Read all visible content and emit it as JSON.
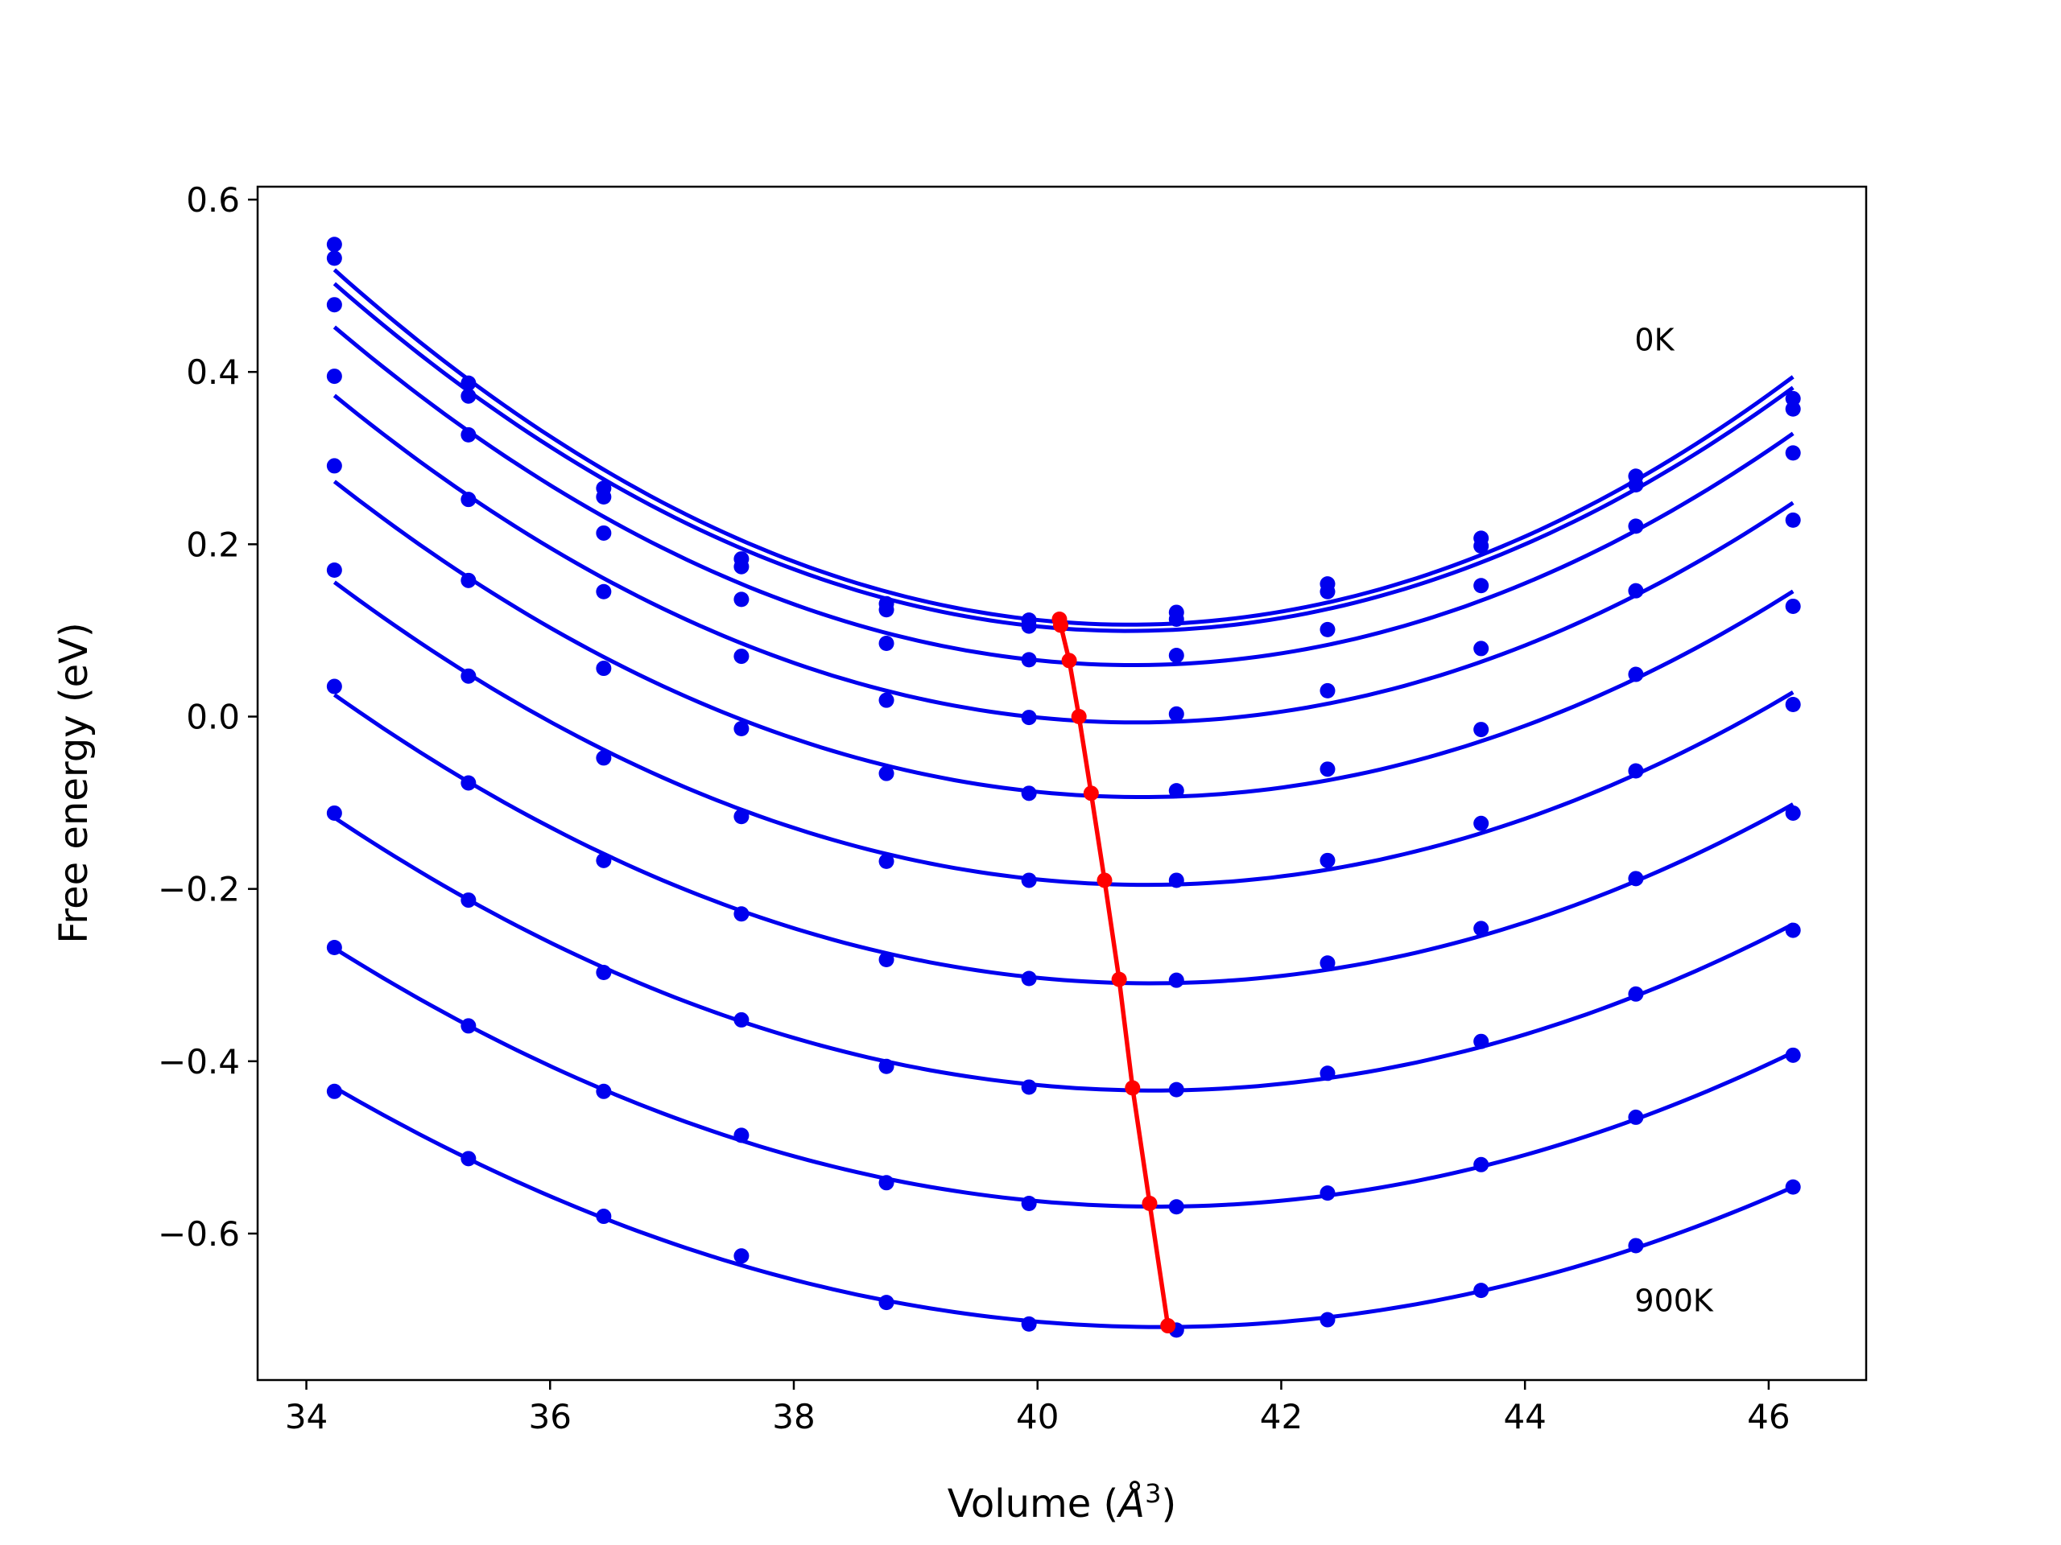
{
  "chart_data": {
    "type": "line",
    "title": "",
    "xlabel": "Volume (",
    "xlabel_symbol": "Å",
    "xlabel_power": "3",
    "xlabel_close": ")",
    "ylabel": "Free energy (eV)",
    "xlim": [
      33.6,
      46.8
    ],
    "ylim": [
      -0.77,
      0.615
    ],
    "x_ticks": [
      34,
      36,
      38,
      40,
      42,
      44,
      46
    ],
    "x_tick_labels": [
      "34",
      "36",
      "38",
      "40",
      "42",
      "44",
      "46"
    ],
    "y_ticks": [
      0.6,
      0.4,
      0.2,
      0.0,
      -0.2,
      -0.4,
      -0.6
    ],
    "y_tick_labels": [
      "0.6",
      "0.4",
      "0.2",
      "0.0",
      "−0.2",
      "−0.4",
      "−0.6"
    ],
    "grid": false,
    "annotations": [
      {
        "text": "0K",
        "x": 44.9,
        "y": 0.425
      },
      {
        "text": "900K",
        "x": 44.9,
        "y": -0.69
      }
    ],
    "colors": {
      "curves": "#0000ee",
      "minimum_line": "#ff0000",
      "frame": "#000000"
    },
    "x": [
      34.23,
      35.33,
      36.44,
      37.57,
      38.76,
      39.93,
      41.14,
      42.38,
      43.64,
      44.91,
      46.2
    ],
    "series": [
      {
        "values": [
          0.548,
          0.387,
          0.265,
          0.183,
          0.131,
          0.112,
          0.121,
          0.154,
          0.207,
          0.279,
          0.369
        ]
      },
      {
        "values": [
          0.532,
          0.372,
          0.255,
          0.174,
          0.124,
          0.105,
          0.113,
          0.145,
          0.198,
          0.269,
          0.357
        ]
      },
      {
        "values": [
          0.478,
          0.327,
          0.213,
          0.136,
          0.085,
          0.066,
          0.071,
          0.101,
          0.152,
          0.221,
          0.306
        ]
      },
      {
        "values": [
          0.395,
          0.252,
          0.145,
          0.07,
          0.019,
          -0.001,
          0.003,
          0.03,
          0.079,
          0.146,
          0.228
        ]
      },
      {
        "values": [
          0.291,
          0.158,
          0.056,
          -0.014,
          -0.066,
          -0.089,
          -0.086,
          -0.061,
          -0.015,
          0.049,
          0.128
        ]
      },
      {
        "values": [
          0.17,
          0.047,
          -0.048,
          -0.116,
          -0.168,
          -0.19,
          -0.19,
          -0.167,
          -0.124,
          -0.063,
          0.014
        ]
      },
      {
        "values": [
          0.035,
          -0.077,
          -0.167,
          -0.229,
          -0.282,
          -0.304,
          -0.306,
          -0.286,
          -0.246,
          -0.188,
          -0.112
        ]
      },
      {
        "values": [
          -0.112,
          -0.213,
          -0.297,
          -0.352,
          -0.406,
          -0.43,
          -0.433,
          -0.414,
          -0.377,
          -0.322,
          -0.248
        ]
      },
      {
        "values": [
          -0.268,
          -0.359,
          -0.435,
          -0.486,
          -0.541,
          -0.565,
          -0.569,
          -0.553,
          -0.52,
          -0.465,
          -0.393
        ]
      },
      {
        "values": [
          -0.435,
          -0.513,
          -0.58,
          -0.626,
          -0.68,
          -0.705,
          -0.712,
          -0.7,
          -0.666,
          -0.614,
          -0.546
        ]
      }
    ],
    "minimum_line": {
      "x": [
        40.18,
        40.19,
        40.26,
        40.34,
        40.44,
        40.55,
        40.67,
        40.78,
        40.92,
        41.07
      ],
      "y": [
        0.113,
        0.106,
        0.065,
        0.0,
        -0.089,
        -0.19,
        -0.305,
        -0.431,
        -0.565,
        -0.707
      ]
    }
  }
}
